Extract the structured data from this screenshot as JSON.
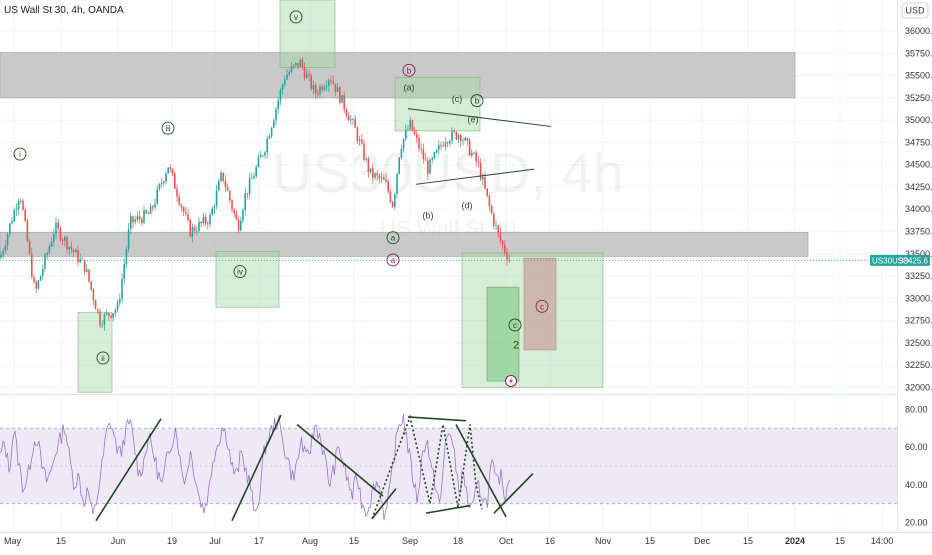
{
  "header": {
    "title": "US Wall St 30, 4h, OANDA",
    "currency": "USD"
  },
  "watermark": {
    "symbol": "US30USD, 4h",
    "name": "US Wall St 30"
  },
  "price_tag": {
    "symbol": "US30USD",
    "value": "33425.6"
  },
  "colors": {
    "up": "#26a69a",
    "down": "#ef5350",
    "rsi_line": "#9575cd",
    "rsi_band": "#ede7f6",
    "zone_gray": "#b2b2b2",
    "zone_green": "#a5d6a7",
    "zone_red": "#c9a6a0",
    "trend": "#1e4620",
    "label_green": "#1f4d1f",
    "label_red": "#8e1c4a"
  },
  "chart_data": [
    {
      "type": "candlestick",
      "title": "US Wall St 30, 4h, OANDA",
      "y_ticks": [
        32000,
        32250,
        32500,
        32750,
        33000,
        33250,
        33500,
        33750,
        34000,
        34250,
        34500,
        34750,
        35000,
        35250,
        35500,
        35750,
        36000
      ],
      "y_tick_labels": [
        "32000.0",
        "32250.0",
        "32500.0",
        "32750.0",
        "33000.0",
        "33250.0",
        "33500.0",
        "33750.0",
        "34000.0",
        "34250.0",
        "34500.0",
        "34750.0",
        "35000.0",
        "35250.0",
        "35500.0",
        "35750.0",
        "36000.0"
      ],
      "ylim": [
        31925,
        36350
      ],
      "x_tick_labels": [
        "May",
        "15",
        "Jun",
        "19",
        "Jul",
        "17",
        "Aug",
        "15",
        "Sep",
        "18",
        "Oct",
        "16",
        "Nov",
        "15",
        "Dec",
        "15",
        "2024",
        "15",
        "14:00"
      ],
      "last_price": 33425.6,
      "close_path": [
        [
          0,
          33450
        ],
        [
          20,
          34200
        ],
        [
          35,
          33050
        ],
        [
          55,
          33800
        ],
        [
          85,
          33350
        ],
        [
          100,
          32750
        ],
        [
          118,
          32900
        ],
        [
          130,
          33850
        ],
        [
          150,
          33950
        ],
        [
          168,
          34500
        ],
        [
          190,
          33750
        ],
        [
          210,
          33900
        ],
        [
          222,
          34400
        ],
        [
          238,
          33800
        ],
        [
          245,
          34150
        ],
        [
          265,
          34700
        ],
        [
          285,
          35500
        ],
        [
          300,
          35650
        ],
        [
          315,
          35300
        ],
        [
          330,
          35500
        ],
        [
          355,
          34900
        ],
        [
          370,
          34400
        ],
        [
          385,
          34300
        ],
        [
          393,
          34050
        ],
        [
          400,
          34700
        ],
        [
          410,
          34950
        ],
        [
          428,
          34450
        ],
        [
          445,
          34800
        ],
        [
          460,
          34850
        ],
        [
          478,
          34500
        ],
        [
          490,
          34000
        ],
        [
          500,
          33650
        ],
        [
          510,
          33425.6
        ]
      ],
      "zones": [
        {
          "kind": "gray",
          "x0": 0,
          "x1": 795,
          "y0": 35760,
          "y1": 35250
        },
        {
          "kind": "gray",
          "x0": 0,
          "x1": 808,
          "y0": 33740,
          "y1": 33470
        },
        {
          "kind": "green",
          "x0": 280,
          "x1": 335,
          "y0": 36350,
          "y1": 35590
        },
        {
          "kind": "green",
          "x0": 395,
          "x1": 480,
          "y0": 35480,
          "y1": 34880
        },
        {
          "kind": "green",
          "x0": 216,
          "x1": 279,
          "y0": 33525,
          "y1": 32900
        },
        {
          "kind": "green",
          "x0": 78,
          "x1": 112,
          "y0": 32840,
          "y1": 31945
        },
        {
          "kind": "green",
          "x0": 462,
          "x1": 603,
          "y0": 33510,
          "y1": 32000
        },
        {
          "kind": "green-dark",
          "x0": 487,
          "x1": 519,
          "y0": 33125,
          "y1": 32070
        },
        {
          "kind": "red",
          "x0": 524,
          "x1": 556,
          "y0": 33450,
          "y1": 32420
        }
      ],
      "trendlines": [
        {
          "x0": 408,
          "y0": 35130,
          "x1": 551,
          "y1": 34930
        },
        {
          "x0": 416,
          "y0": 34280,
          "x1": 534,
          "y1": 34450
        }
      ],
      "wave_labels": [
        {
          "text": "i",
          "x": 20,
          "y": 34620,
          "circled": true,
          "color": "green"
        },
        {
          "text": "ii",
          "x": 103,
          "y": 32330,
          "circled": true,
          "color": "green"
        },
        {
          "text": "iii",
          "x": 168,
          "y": 34910,
          "circled": true,
          "color": "green"
        },
        {
          "text": "iv",
          "x": 240,
          "y": 33300,
          "circled": true,
          "color": "green"
        },
        {
          "text": "v",
          "x": 296,
          "y": 36160,
          "circled": true,
          "color": "green"
        },
        {
          "text": "b",
          "x": 409,
          "y": 35560,
          "circled": true,
          "color": "red"
        },
        {
          "text": "(a)",
          "x": 409,
          "y": 35370,
          "circled": false,
          "color": "green"
        },
        {
          "text": "(c)",
          "x": 457,
          "y": 35240,
          "circled": false,
          "color": "green"
        },
        {
          "text": "b",
          "x": 477,
          "y": 35220,
          "circled": true,
          "color": "green"
        },
        {
          "text": "(e)",
          "x": 473,
          "y": 35010,
          "circled": false,
          "color": "green"
        },
        {
          "text": "(b)",
          "x": 428,
          "y": 33930,
          "circled": false,
          "color": "green"
        },
        {
          "text": "(d)",
          "x": 467,
          "y": 34040,
          "circled": false,
          "color": "green"
        },
        {
          "text": "a",
          "x": 393,
          "y": 33680,
          "circled": true,
          "color": "green"
        },
        {
          "text": "a",
          "x": 393,
          "y": 33430,
          "circled": true,
          "color": "red"
        },
        {
          "text": "c",
          "x": 542,
          "y": 32910,
          "circled": true,
          "color": "red"
        },
        {
          "text": "c",
          "x": 515,
          "y": 32700,
          "circled": true,
          "color": "green"
        },
        {
          "text": "2",
          "x": 516,
          "y": 32470,
          "circled": false,
          "color": "green"
        }
      ]
    },
    {
      "type": "line",
      "title": "",
      "y_ticks": [
        20,
        40,
        60,
        80
      ],
      "y_tick_labels": [
        "20.00",
        "40.00",
        "60.00",
        "80.00"
      ],
      "ylim": [
        15,
        85
      ],
      "band": [
        30,
        70
      ],
      "values": [
        55,
        62,
        48,
        70,
        52,
        38,
        44,
        60,
        66,
        50,
        42,
        47,
        58,
        64,
        72,
        54,
        40,
        45,
        30,
        38,
        22,
        34,
        50,
        68,
        73,
        61,
        56,
        67,
        74,
        60,
        45,
        52,
        66,
        58,
        47,
        39,
        54,
        63,
        71,
        49,
        42,
        58,
        46,
        33,
        27,
        36,
        55,
        62,
        71,
        65,
        50,
        44,
        57,
        48,
        40,
        22,
        36,
        58,
        66,
        71,
        75,
        62,
        55,
        44,
        50,
        64,
        53,
        60,
        72,
        66,
        55,
        40,
        48,
        60,
        52,
        42,
        34,
        45,
        31,
        26,
        33,
        42,
        38,
        22,
        35,
        55,
        72,
        76,
        60,
        45,
        32,
        54,
        66,
        48,
        40,
        28,
        62,
        70,
        55,
        38,
        46,
        30,
        27,
        40,
        35,
        29,
        52,
        41,
        45,
        34,
        47
      ],
      "trendlines": [
        {
          "x0": 96,
          "y0": 21,
          "x1": 161,
          "y1": 75
        },
        {
          "x0": 232,
          "y0": 21,
          "x1": 281,
          "y1": 77
        },
        {
          "x0": 297,
          "y0": 72,
          "x1": 383,
          "y1": 34
        },
        {
          "x0": 408,
          "y0": 76,
          "x1": 466,
          "y1": 74
        },
        {
          "x0": 426,
          "y0": 25,
          "x1": 470,
          "y1": 29
        },
        {
          "x0": 456,
          "y0": 72,
          "x1": 506,
          "y1": 23
        },
        {
          "x0": 494,
          "y0": 25,
          "x1": 533,
          "y1": 46
        },
        {
          "x0": 372,
          "y0": 22,
          "x1": 396,
          "y1": 38
        }
      ],
      "dotted": [
        [
          372,
          22
        ],
        [
          393,
          52
        ],
        [
          410,
          76
        ],
        [
          430,
          30
        ],
        [
          443,
          72
        ],
        [
          458,
          28
        ],
        [
          470,
          72
        ],
        [
          476,
          40
        ],
        [
          482,
          27
        ]
      ]
    }
  ]
}
